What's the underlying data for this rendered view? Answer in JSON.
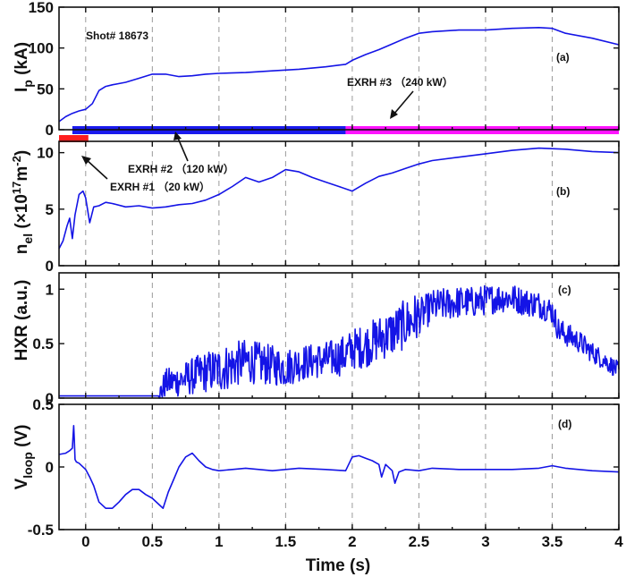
{
  "chart_data": [
    {
      "id": "a",
      "type": "line",
      "panel_label": "(a)",
      "ylabel": "I",
      "ylabel_sub": "p",
      "ylabel_tail": " (kA)",
      "annotation": "Shot# 18673",
      "ylim": [
        0,
        150
      ],
      "yticks": [
        0,
        50,
        100,
        150
      ],
      "series": [
        {
          "color": "#1414e6",
          "x": [
            -0.2,
            -0.15,
            -0.1,
            -0.05,
            0.0,
            0.05,
            0.1,
            0.15,
            0.2,
            0.3,
            0.4,
            0.5,
            0.6,
            0.7,
            0.8,
            0.9,
            1.0,
            1.2,
            1.4,
            1.6,
            1.8,
            1.95,
            2.0,
            2.1,
            2.2,
            2.3,
            2.4,
            2.5,
            2.6,
            2.8,
            3.0,
            3.2,
            3.4,
            3.5,
            3.6,
            3.8,
            4.0
          ],
          "y": [
            10,
            16,
            20,
            23,
            25,
            32,
            48,
            53,
            55,
            58,
            63,
            68,
            68,
            65,
            66,
            68,
            69,
            70,
            72,
            74,
            77,
            80,
            85,
            92,
            98,
            105,
            112,
            118,
            120,
            122,
            122,
            124,
            125,
            124,
            118,
            112,
            104
          ]
        }
      ],
      "bars": [
        {
          "label": "EXRH #1 (20 kW)",
          "x_start": -0.2,
          "x_end": 0.02,
          "color": "#ff1e1e",
          "lane": 1
        },
        {
          "label": "EXRH #2 (120 kW)",
          "x_start": -0.1,
          "x_end": 1.95,
          "color": "#1a1aee",
          "lane": 0
        },
        {
          "label": "EXRH #3 (240 kW)",
          "x_start": 1.95,
          "x_end": 4.0,
          "color": "#ff14ff",
          "lane": 0
        }
      ],
      "callouts": {
        "exrh3": "EXRH #3 （240 kW）",
        "exrh2": "EXRH #2 （120 kW）",
        "exrh1": "EXRH #1 （20 kW）"
      }
    },
    {
      "id": "b",
      "type": "line",
      "panel_label": "(b)",
      "ylabel": "n",
      "ylabel_sub": "el",
      "ylabel_tail": " (×10",
      "ylabel_sup": "17",
      "ylabel_tail2": "m",
      "ylabel_sup2": "-2",
      "ylabel_end": ")",
      "ylim": [
        0,
        11
      ],
      "yticks": [
        0,
        5,
        10
      ],
      "series": [
        {
          "color": "#1414e6",
          "x": [
            -0.2,
            -0.17,
            -0.14,
            -0.12,
            -0.1,
            -0.08,
            -0.05,
            -0.02,
            0.0,
            0.03,
            0.06,
            0.1,
            0.15,
            0.2,
            0.3,
            0.4,
            0.5,
            0.6,
            0.7,
            0.8,
            0.9,
            1.0,
            1.1,
            1.2,
            1.3,
            1.4,
            1.5,
            1.6,
            1.7,
            1.8,
            1.9,
            2.0,
            2.1,
            2.2,
            2.3,
            2.4,
            2.5,
            2.6,
            2.8,
            3.0,
            3.2,
            3.4,
            3.6,
            3.8,
            4.0
          ],
          "y": [
            1.5,
            2.2,
            3.5,
            4.2,
            2.4,
            4.5,
            6.3,
            6.6,
            6.0,
            3.8,
            5.2,
            5.3,
            5.6,
            5.5,
            5.2,
            5.3,
            5.1,
            5.2,
            5.4,
            5.5,
            5.8,
            6.3,
            7.0,
            7.8,
            7.4,
            7.8,
            8.5,
            8.3,
            7.8,
            7.4,
            7.0,
            6.6,
            7.3,
            7.9,
            8.2,
            8.6,
            9.0,
            9.3,
            9.6,
            9.9,
            10.2,
            10.4,
            10.3,
            10.1,
            10.0
          ]
        }
      ]
    },
    {
      "id": "c",
      "type": "line",
      "panel_label": "(c)",
      "ylabel": "HXR (a.u.)",
      "ylim": [
        0,
        1.15
      ],
      "yticks": [
        0,
        0.5,
        1
      ],
      "series": [
        {
          "color": "#1414e6",
          "x": [
            -0.2,
            0.0,
            0.2,
            0.4,
            0.55,
            0.6,
            0.7,
            0.8,
            0.9,
            1.0,
            1.1,
            1.2,
            1.3,
            1.4,
            1.5,
            1.6,
            1.7,
            1.8,
            1.9,
            1.95,
            2.0,
            2.1,
            2.2,
            2.3,
            2.4,
            2.5,
            2.6,
            2.7,
            2.8,
            2.9,
            3.0,
            3.1,
            3.2,
            3.3,
            3.4,
            3.5,
            3.55,
            3.7,
            3.8,
            3.9,
            4.0
          ],
          "y": [
            0.02,
            0.02,
            0.02,
            0.02,
            0.02,
            0.14,
            0.16,
            0.2,
            0.24,
            0.26,
            0.3,
            0.34,
            0.32,
            0.3,
            0.28,
            0.32,
            0.34,
            0.35,
            0.38,
            0.4,
            0.45,
            0.48,
            0.55,
            0.6,
            0.68,
            0.75,
            0.84,
            0.86,
            0.88,
            0.88,
            0.9,
            0.92,
            0.92,
            0.88,
            0.86,
            0.8,
            0.62,
            0.52,
            0.42,
            0.34,
            0.25
          ]
        }
      ],
      "noise": [
        [
          0.55,
          0.0,
          0.55,
          0.12
        ],
        [
          1.0,
          0.22,
          1.7,
          0.16
        ],
        [
          1.7,
          0.16,
          2.5,
          0.24
        ],
        [
          2.5,
          0.16,
          3.5,
          0.12
        ],
        [
          3.5,
          0.12,
          4.0,
          0.08
        ]
      ]
    },
    {
      "id": "d",
      "type": "line",
      "panel_label": "(d)",
      "ylabel": "V",
      "ylabel_sub": "loop",
      "ylabel_tail": " (V)",
      "ylim": [
        -0.5,
        0.5
      ],
      "yticks": [
        -0.5,
        0,
        0.5
      ],
      "yticklabels": [
        "-0.5",
        "0",
        "0.5"
      ],
      "series": [
        {
          "color": "#1414e6",
          "x": [
            -0.2,
            -0.15,
            -0.12,
            -0.1,
            -0.09,
            -0.085,
            -0.08,
            -0.07,
            -0.05,
            0.0,
            0.03,
            0.06,
            0.1,
            0.15,
            0.2,
            0.25,
            0.3,
            0.35,
            0.4,
            0.45,
            0.5,
            0.55,
            0.58,
            0.62,
            0.66,
            0.7,
            0.75,
            0.8,
            0.85,
            0.9,
            0.95,
            1.0,
            1.1,
            1.2,
            1.4,
            1.6,
            1.8,
            1.95,
            2.0,
            2.05,
            2.1,
            2.15,
            2.2,
            2.22,
            2.25,
            2.3,
            2.32,
            2.35,
            2.4,
            2.5,
            2.6,
            2.8,
            3.0,
            3.2,
            3.4,
            3.5,
            3.6,
            3.8,
            4.0
          ],
          "y": [
            0.1,
            0.11,
            0.13,
            0.15,
            0.33,
            0.22,
            0.06,
            0.04,
            0.03,
            -0.02,
            -0.08,
            -0.15,
            -0.28,
            -0.33,
            -0.33,
            -0.28,
            -0.22,
            -0.18,
            -0.18,
            -0.22,
            -0.25,
            -0.3,
            -0.33,
            -0.2,
            -0.1,
            0.0,
            0.08,
            0.11,
            0.05,
            0.0,
            -0.02,
            -0.03,
            -0.02,
            -0.01,
            -0.03,
            -0.01,
            -0.02,
            -0.03,
            0.08,
            0.09,
            0.07,
            0.05,
            0.02,
            -0.08,
            0.02,
            -0.03,
            -0.13,
            -0.04,
            -0.02,
            -0.03,
            -0.01,
            -0.02,
            -0.02,
            -0.02,
            -0.01,
            0.01,
            -0.01,
            -0.03,
            -0.04
          ]
        }
      ]
    }
  ],
  "x_axis": {
    "xlim": [
      -0.2,
      4.0
    ],
    "ticks": [
      0,
      0.5,
      1,
      1.5,
      2,
      2.5,
      3,
      3.5,
      4
    ],
    "ticklabels": [
      "0",
      "0.5",
      "1",
      "1.5",
      "2",
      "2.5",
      "3",
      "3.5",
      "4"
    ],
    "xlabel": "Time (s)",
    "gridlines": [
      0,
      0.5,
      1,
      1.5,
      2,
      2.5,
      3,
      3.5
    ]
  }
}
